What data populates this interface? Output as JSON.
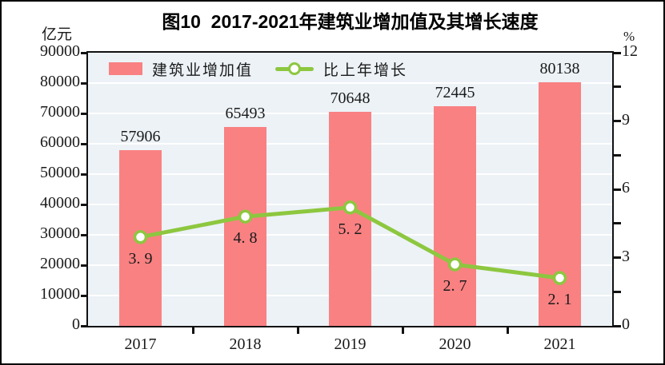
{
  "title": "图10  2017-2021年建筑业增加值及其增长速度",
  "left_axis": {
    "unit": "亿元",
    "tick_labels": [
      "90000",
      "80000",
      "70000",
      "60000",
      "50000",
      "40000",
      "30000",
      "20000",
      "10000",
      "0"
    ]
  },
  "right_axis": {
    "unit": "%",
    "tick_labels": [
      "12",
      "9",
      "6",
      "3",
      "0"
    ]
  },
  "legend": {
    "items": [
      {
        "label": "建筑业增加值",
        "type": "bar"
      },
      {
        "label": "比上年增长",
        "type": "line"
      }
    ]
  },
  "chart_data": {
    "type": "bar+line",
    "title": "图10  2017-2021年建筑业增加值及其增长速度",
    "categories": [
      "2017",
      "2018",
      "2019",
      "2020",
      "2021"
    ],
    "series": [
      {
        "name": "建筑业增加值",
        "type": "bar",
        "axis": "left",
        "unit": "亿元",
        "values": [
          57906,
          65493,
          70648,
          72445,
          80138
        ],
        "data_labels": [
          "57906",
          "65493",
          "70648",
          "72445",
          "80138"
        ],
        "color": "#f98182"
      },
      {
        "name": "比上年增长",
        "type": "line",
        "axis": "right",
        "unit": "%",
        "values": [
          3.9,
          4.8,
          5.2,
          2.7,
          2.1
        ],
        "data_labels": [
          "3. 9",
          "4. 8",
          "5. 2",
          "2. 7",
          "2. 1"
        ],
        "color": "#8dc73f"
      }
    ],
    "left_ylim": [
      0,
      90000
    ],
    "left_step": 10000,
    "right_ylim": [
      0,
      12
    ],
    "right_label_step": 3,
    "right_tick_step": 1.5,
    "grid": true,
    "legend_position": "top-left-inside",
    "plot_bg": "#ecf2f6",
    "grid_color": "#ffffff"
  },
  "colors": {
    "bar": "#f98182",
    "line": "#8dc73f",
    "marker_fill": "#ffffff",
    "plot_bg": "#ecf2f6",
    "grid": "#ffffff",
    "axis": "#000000",
    "text": "#1a1a1a",
    "background": "#ffffff"
  }
}
